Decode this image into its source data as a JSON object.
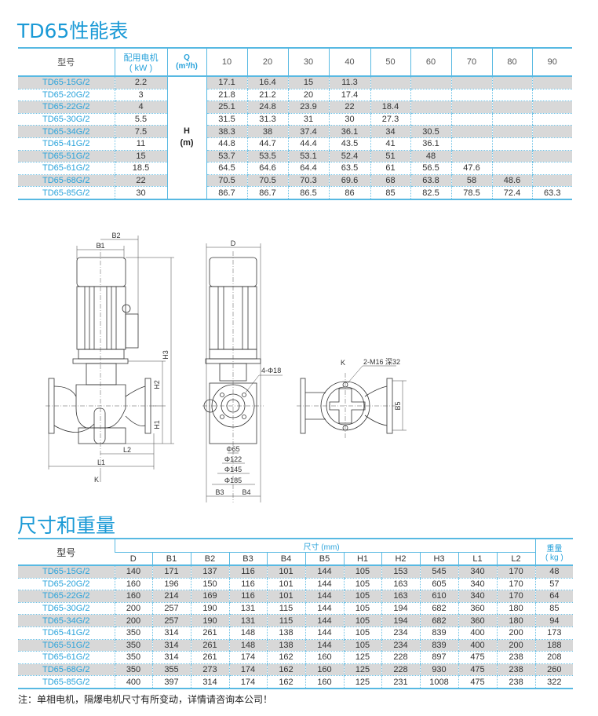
{
  "performance": {
    "title": "TD65性能表",
    "header": {
      "model": "型号",
      "power": "配用电机",
      "power_unit": "( kW )",
      "q": "Q",
      "q_unit": "(m³/h)",
      "h": "H",
      "h_unit": "(m)"
    },
    "flows": [
      "10",
      "20",
      "30",
      "40",
      "50",
      "60",
      "70",
      "80",
      "90"
    ],
    "rows": [
      {
        "model": "TD65-15G/2",
        "kw": "2.2",
        "h": [
          "17.1",
          "16.4",
          "15",
          "11.3",
          "",
          "",
          "",
          "",
          ""
        ]
      },
      {
        "model": "TD65-20G/2",
        "kw": "3",
        "h": [
          "21.8",
          "21.2",
          "20",
          "17.4",
          "",
          "",
          "",
          "",
          ""
        ]
      },
      {
        "model": "TD65-22G/2",
        "kw": "4",
        "h": [
          "25.1",
          "24.8",
          "23.9",
          "22",
          "18.4",
          "",
          "",
          "",
          ""
        ]
      },
      {
        "model": "TD65-30G/2",
        "kw": "5.5",
        "h": [
          "31.5",
          "31.3",
          "31",
          "30",
          "27.3",
          "",
          "",
          "",
          ""
        ]
      },
      {
        "model": "TD65-34G/2",
        "kw": "7.5",
        "h": [
          "38.3",
          "38",
          "37.4",
          "36.1",
          "34",
          "30.5",
          "",
          "",
          ""
        ]
      },
      {
        "model": "TD65-41G/2",
        "kw": "11",
        "h": [
          "44.8",
          "44.7",
          "44.4",
          "43.5",
          "41",
          "36.1",
          "",
          "",
          ""
        ]
      },
      {
        "model": "TD65-51G/2",
        "kw": "15",
        "h": [
          "53.7",
          "53.5",
          "53.1",
          "52.4",
          "51",
          "48",
          "",
          "",
          ""
        ]
      },
      {
        "model": "TD65-61G/2",
        "kw": "18.5",
        "h": [
          "64.5",
          "64.6",
          "64.4",
          "63.5",
          "61",
          "56.5",
          "47.6",
          "",
          ""
        ]
      },
      {
        "model": "TD65-68G/2",
        "kw": "22",
        "h": [
          "70.5",
          "70.5",
          "70.3",
          "69.6",
          "68",
          "63.8",
          "58",
          "48.6",
          ""
        ]
      },
      {
        "model": "TD65-85G/2",
        "kw": "30",
        "h": [
          "86.7",
          "86.7",
          "86.5",
          "86",
          "85",
          "82.5",
          "78.5",
          "72.4",
          "63.3"
        ]
      }
    ]
  },
  "drawing": {
    "labels": {
      "b1": "B1",
      "b2": "B2",
      "h1": "H1",
      "h2": "H2",
      "h3": "H3",
      "l1": "L1",
      "l2": "L2",
      "k": "K",
      "d": "D",
      "bolts": "4-Φ18",
      "phi65": "Φ65",
      "phi122": "Φ122",
      "phi145": "Φ145",
      "phi185": "Φ185",
      "b3": "B3",
      "b4": "B4",
      "b5": "B5",
      "k2": "K",
      "thread": "2-M16 深32"
    }
  },
  "dimensions": {
    "title": "尺寸和重量",
    "header": {
      "model": "型号",
      "group": "尺寸 (mm)",
      "weight": "重量",
      "weight_unit": "( kg )"
    },
    "columns": [
      "D",
      "B1",
      "B2",
      "B3",
      "B4",
      "B5",
      "H1",
      "H2",
      "H3",
      "L1",
      "L2"
    ],
    "rows": [
      {
        "model": "TD65-15G/2",
        "v": [
          "140",
          "171",
          "137",
          "116",
          "101",
          "144",
          "105",
          "153",
          "545",
          "340",
          "170"
        ],
        "kg": "48"
      },
      {
        "model": "TD65-20G/2",
        "v": [
          "160",
          "196",
          "150",
          "116",
          "101",
          "144",
          "105",
          "163",
          "605",
          "340",
          "170"
        ],
        "kg": "57"
      },
      {
        "model": "TD65-22G/2",
        "v": [
          "160",
          "214",
          "169",
          "116",
          "101",
          "144",
          "105",
          "163",
          "610",
          "340",
          "170"
        ],
        "kg": "64"
      },
      {
        "model": "TD65-30G/2",
        "v": [
          "200",
          "257",
          "190",
          "131",
          "115",
          "144",
          "105",
          "194",
          "682",
          "360",
          "180"
        ],
        "kg": "85"
      },
      {
        "model": "TD65-34G/2",
        "v": [
          "200",
          "257",
          "190",
          "131",
          "115",
          "144",
          "105",
          "194",
          "682",
          "360",
          "180"
        ],
        "kg": "94"
      },
      {
        "model": "TD65-41G/2",
        "v": [
          "350",
          "314",
          "261",
          "148",
          "138",
          "144",
          "105",
          "234",
          "839",
          "400",
          "200"
        ],
        "kg": "173"
      },
      {
        "model": "TD65-51G/2",
        "v": [
          "350",
          "314",
          "261",
          "148",
          "138",
          "144",
          "105",
          "234",
          "839",
          "400",
          "200"
        ],
        "kg": "188"
      },
      {
        "model": "TD65-61G/2",
        "v": [
          "350",
          "314",
          "261",
          "174",
          "162",
          "160",
          "125",
          "228",
          "897",
          "475",
          "238"
        ],
        "kg": "208"
      },
      {
        "model": "TD65-68G/2",
        "v": [
          "350",
          "355",
          "273",
          "174",
          "162",
          "160",
          "125",
          "228",
          "930",
          "475",
          "238"
        ],
        "kg": "260"
      },
      {
        "model": "TD65-85G/2",
        "v": [
          "400",
          "397",
          "314",
          "174",
          "162",
          "160",
          "125",
          "231",
          "1008",
          "475",
          "238"
        ],
        "kg": "322"
      }
    ],
    "note": "注：单相电机，隔爆电机尺寸有所变动，详情请咨询本公司！"
  }
}
